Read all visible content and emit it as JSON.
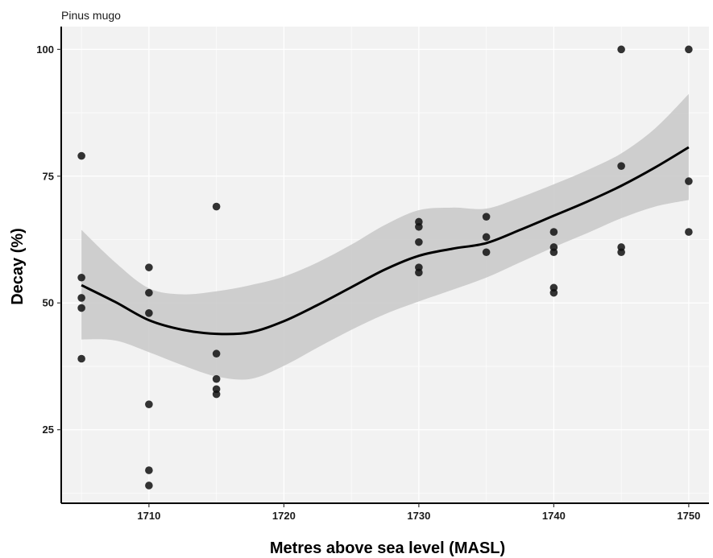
{
  "chart_data": {
    "type": "scatter",
    "title": "Pinus mugo",
    "xlabel": "Metres above sea level (MASL)",
    "ylabel": "Decay (%)",
    "xlim": [
      1703.5,
      1751.5
    ],
    "ylim": [
      10.5,
      104.5
    ],
    "xticks": [
      1710,
      1720,
      1730,
      1740,
      1750
    ],
    "yticks": [
      25,
      50,
      75,
      100
    ],
    "grid": true,
    "background_color": "#f2f2f2",
    "point_color": "#111111",
    "smooth_color": "#000000",
    "ribbon_color": "#c8c8c8",
    "points": [
      {
        "x": 1705,
        "y": 79
      },
      {
        "x": 1705,
        "y": 55
      },
      {
        "x": 1705,
        "y": 51
      },
      {
        "x": 1705,
        "y": 49
      },
      {
        "x": 1705,
        "y": 39
      },
      {
        "x": 1710,
        "y": 57
      },
      {
        "x": 1710,
        "y": 52
      },
      {
        "x": 1710,
        "y": 48
      },
      {
        "x": 1710,
        "y": 30
      },
      {
        "x": 1710,
        "y": 17
      },
      {
        "x": 1710,
        "y": 14
      },
      {
        "x": 1715,
        "y": 69
      },
      {
        "x": 1715,
        "y": 40
      },
      {
        "x": 1715,
        "y": 35
      },
      {
        "x": 1715,
        "y": 33
      },
      {
        "x": 1715,
        "y": 32
      },
      {
        "x": 1730,
        "y": 66
      },
      {
        "x": 1730,
        "y": 65
      },
      {
        "x": 1730,
        "y": 62
      },
      {
        "x": 1730,
        "y": 57
      },
      {
        "x": 1730,
        "y": 56
      },
      {
        "x": 1735,
        "y": 67
      },
      {
        "x": 1735,
        "y": 63
      },
      {
        "x": 1735,
        "y": 60
      },
      {
        "x": 1740,
        "y": 64
      },
      {
        "x": 1740,
        "y": 61
      },
      {
        "x": 1740,
        "y": 60
      },
      {
        "x": 1740,
        "y": 53
      },
      {
        "x": 1740,
        "y": 52
      },
      {
        "x": 1745,
        "y": 100
      },
      {
        "x": 1745,
        "y": 77
      },
      {
        "x": 1745,
        "y": 61
      },
      {
        "x": 1745,
        "y": 60
      },
      {
        "x": 1750,
        "y": 100
      },
      {
        "x": 1750,
        "y": 74
      },
      {
        "x": 1750,
        "y": 64
      }
    ],
    "smooth": {
      "x": [
        1705,
        1707.5,
        1710,
        1712.5,
        1715,
        1717.5,
        1720,
        1722.5,
        1725,
        1727.5,
        1730,
        1732.5,
        1735,
        1737.5,
        1740,
        1742.5,
        1745,
        1747.5,
        1750
      ],
      "y": [
        53.5,
        50.2,
        46.6,
        44.7,
        43.9,
        44.2,
        46.4,
        49.6,
        53.1,
        56.6,
        59.3,
        60.7,
        61.8,
        64.4,
        67.2,
        70.0,
        73.1,
        76.7,
        80.7
      ],
      "lower": [
        42.8,
        42.6,
        40.3,
        37.7,
        35.5,
        35.0,
        37.6,
        41.2,
        44.7,
        47.8,
        50.3,
        52.6,
        55.0,
        58.0,
        61.0,
        63.8,
        66.7,
        69.0,
        70.3
      ],
      "upper": [
        64.4,
        58.0,
        52.9,
        51.7,
        52.3,
        53.5,
        55.2,
        58.0,
        61.5,
        65.4,
        68.3,
        68.8,
        68.6,
        70.8,
        73.4,
        76.2,
        79.5,
        84.4,
        91.2
      ]
    }
  }
}
